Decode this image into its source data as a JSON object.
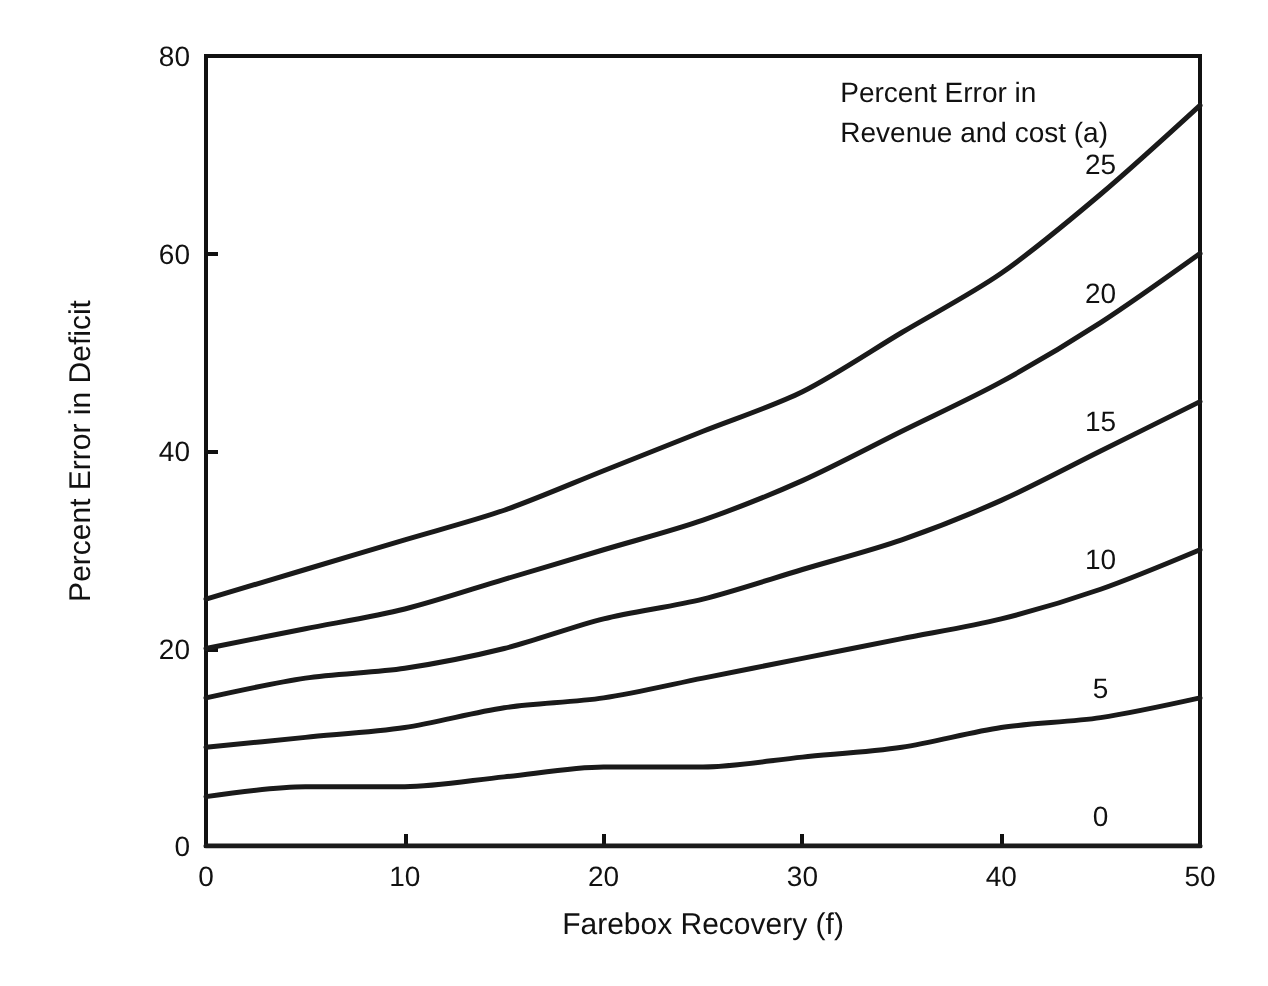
{
  "chart_data": {
    "type": "line",
    "xlabel": "Farebox Recovery (f)",
    "ylabel": "Percent Error in Deficit",
    "legend_title": "Percent Error in\nRevenue and cost ($_{}$a)",
    "x": [
      0,
      5,
      10,
      15,
      20,
      25,
      30,
      35,
      40,
      45,
      50
    ],
    "series": [
      {
        "name": "25",
        "color": "#1a1a1a",
        "values": [
          25,
          28,
          31,
          34,
          38,
          42,
          46,
          52,
          58,
          66,
          75
        ]
      },
      {
        "name": "20",
        "color": "#1a1a1a",
        "values": [
          20,
          22,
          24,
          27,
          30,
          33,
          37,
          42,
          47,
          53,
          60
        ]
      },
      {
        "name": "15",
        "color": "#1a1a1a",
        "values": [
          15,
          17,
          18,
          20,
          23,
          25,
          28,
          31,
          35,
          40,
          45
        ]
      },
      {
        "name": "10",
        "color": "#1a1a1a",
        "values": [
          10,
          11,
          12,
          14,
          15,
          17,
          19,
          21,
          23,
          26,
          30
        ]
      },
      {
        "name": "5",
        "color": "#1a1a1a",
        "values": [
          5,
          6,
          6,
          7,
          8,
          8,
          9,
          10,
          12,
          13,
          15
        ]
      },
      {
        "name": "0",
        "color": "#1a1a1a",
        "values": [
          0,
          0,
          0,
          0,
          0,
          0,
          0,
          0,
          0,
          0,
          0
        ]
      }
    ],
    "xlim": [
      0,
      50
    ],
    "xticks": [
      0,
      10,
      20,
      30,
      40,
      50
    ],
    "ylim": [
      0,
      80
    ],
    "yticks": [
      0,
      20,
      40,
      60,
      80
    ],
    "grid": false,
    "legend": false,
    "marker": "none",
    "line_style": "solid"
  }
}
